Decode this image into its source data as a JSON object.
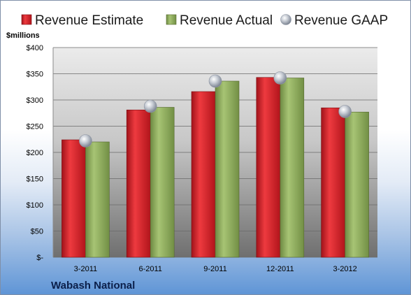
{
  "chart_data": {
    "type": "bar",
    "categories": [
      "3-2011",
      "6-2011",
      "9-2011",
      "12-2011",
      "3-2012"
    ],
    "series": [
      {
        "name": "Revenue Estimate",
        "values": [
          224,
          281,
          316,
          343,
          285
        ],
        "color": "#d42027"
      },
      {
        "name": "Revenue Actual",
        "values": [
          220,
          286,
          336,
          342,
          277
        ],
        "color": "#8fae5c"
      },
      {
        "name": "Revenue GAAP",
        "values": [
          222,
          288,
          336,
          342,
          278
        ],
        "color": "#b9c0cc",
        "marker": "sphere"
      }
    ],
    "ylim": [
      0,
      400
    ],
    "yticks": [
      {
        "value": 0,
        "label": "$-"
      },
      {
        "value": 50,
        "label": "$50"
      },
      {
        "value": 100,
        "label": "$100"
      },
      {
        "value": 150,
        "label": "$150"
      },
      {
        "value": 200,
        "label": "$200"
      },
      {
        "value": 250,
        "label": "$250"
      },
      {
        "value": 300,
        "label": "$300"
      },
      {
        "value": 350,
        "label": "$350"
      },
      {
        "value": 400,
        "label": "$400"
      }
    ],
    "ylabel": "$millions",
    "legend_position": "top",
    "grid": true,
    "company": "Wabash National"
  }
}
